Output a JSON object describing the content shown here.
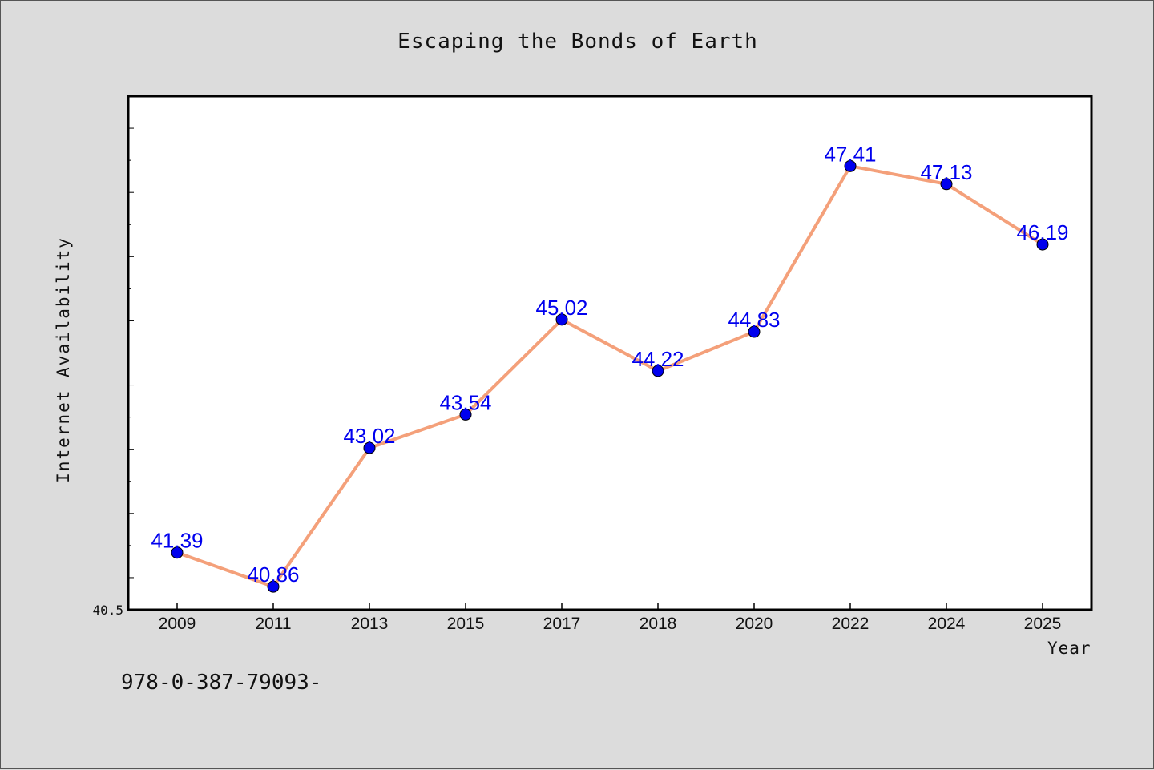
{
  "chart_data": {
    "type": "line",
    "title": "Escaping the Bonds of Earth",
    "xlabel": "Year",
    "ylabel": "Internet Availability",
    "categories": [
      "2009",
      "2011",
      "2013",
      "2015",
      "2017",
      "2018",
      "2020",
      "2022",
      "2024",
      "2025"
    ],
    "values": [
      41.39,
      40.86,
      43.02,
      43.54,
      45.02,
      44.22,
      44.83,
      47.41,
      47.13,
      46.19
    ],
    "data_labels": [
      "41.39",
      "40.86",
      "43.02",
      "43.54",
      "45.02",
      "44.22",
      "44.83",
      "47.41",
      "47.13",
      "46.19"
    ],
    "ylim": [
      40.5,
      48.5
    ],
    "y_tick_labels": [
      "40.5"
    ],
    "grid": false,
    "legend": "none",
    "colors": {
      "line": "#f4a07a",
      "marker": "#0000ee",
      "label": "#0000ee",
      "plot_bg": "#ffffff",
      "page_bg": "#dcdcdc"
    }
  },
  "footnote": "978-0-387-79093-"
}
